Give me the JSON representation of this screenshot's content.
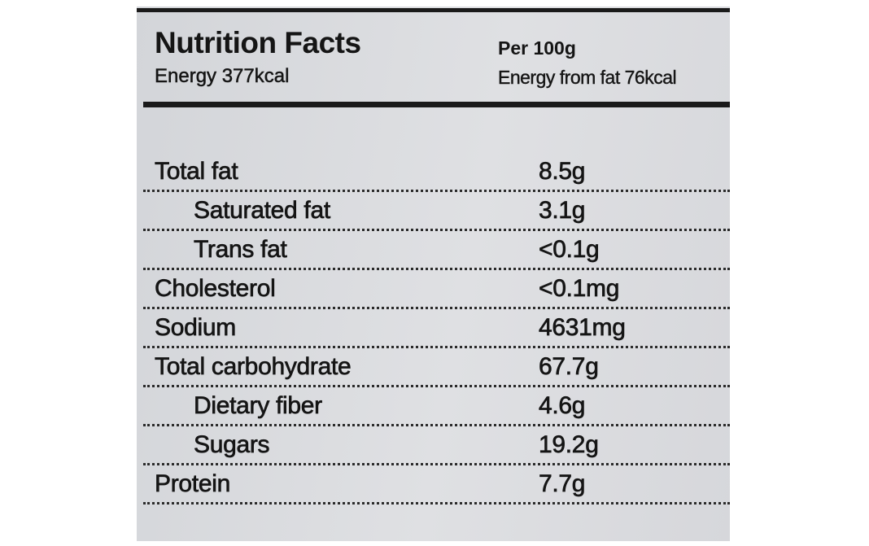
{
  "header": {
    "title": "Nutrition Facts",
    "energy": "Energy 377kcal",
    "per": "Per 100g",
    "energy_from_fat": "Energy from fat 76kcal"
  },
  "table": {
    "rows": [
      [
        "Total fat",
        "8.5g"
      ],
      [
        "Saturated fat",
        "3.1g"
      ],
      [
        "Trans fat",
        "<0.1g"
      ],
      [
        "Cholesterol",
        "<0.1mg"
      ],
      [
        "Sodium",
        "4631mg"
      ],
      [
        "Total carbohydrate",
        "67.7g"
      ],
      [
        "Dietary fiber",
        "4.6g"
      ],
      [
        "Sugars",
        "19.2g"
      ],
      [
        "Protein",
        "7.7g"
      ]
    ]
  }
}
